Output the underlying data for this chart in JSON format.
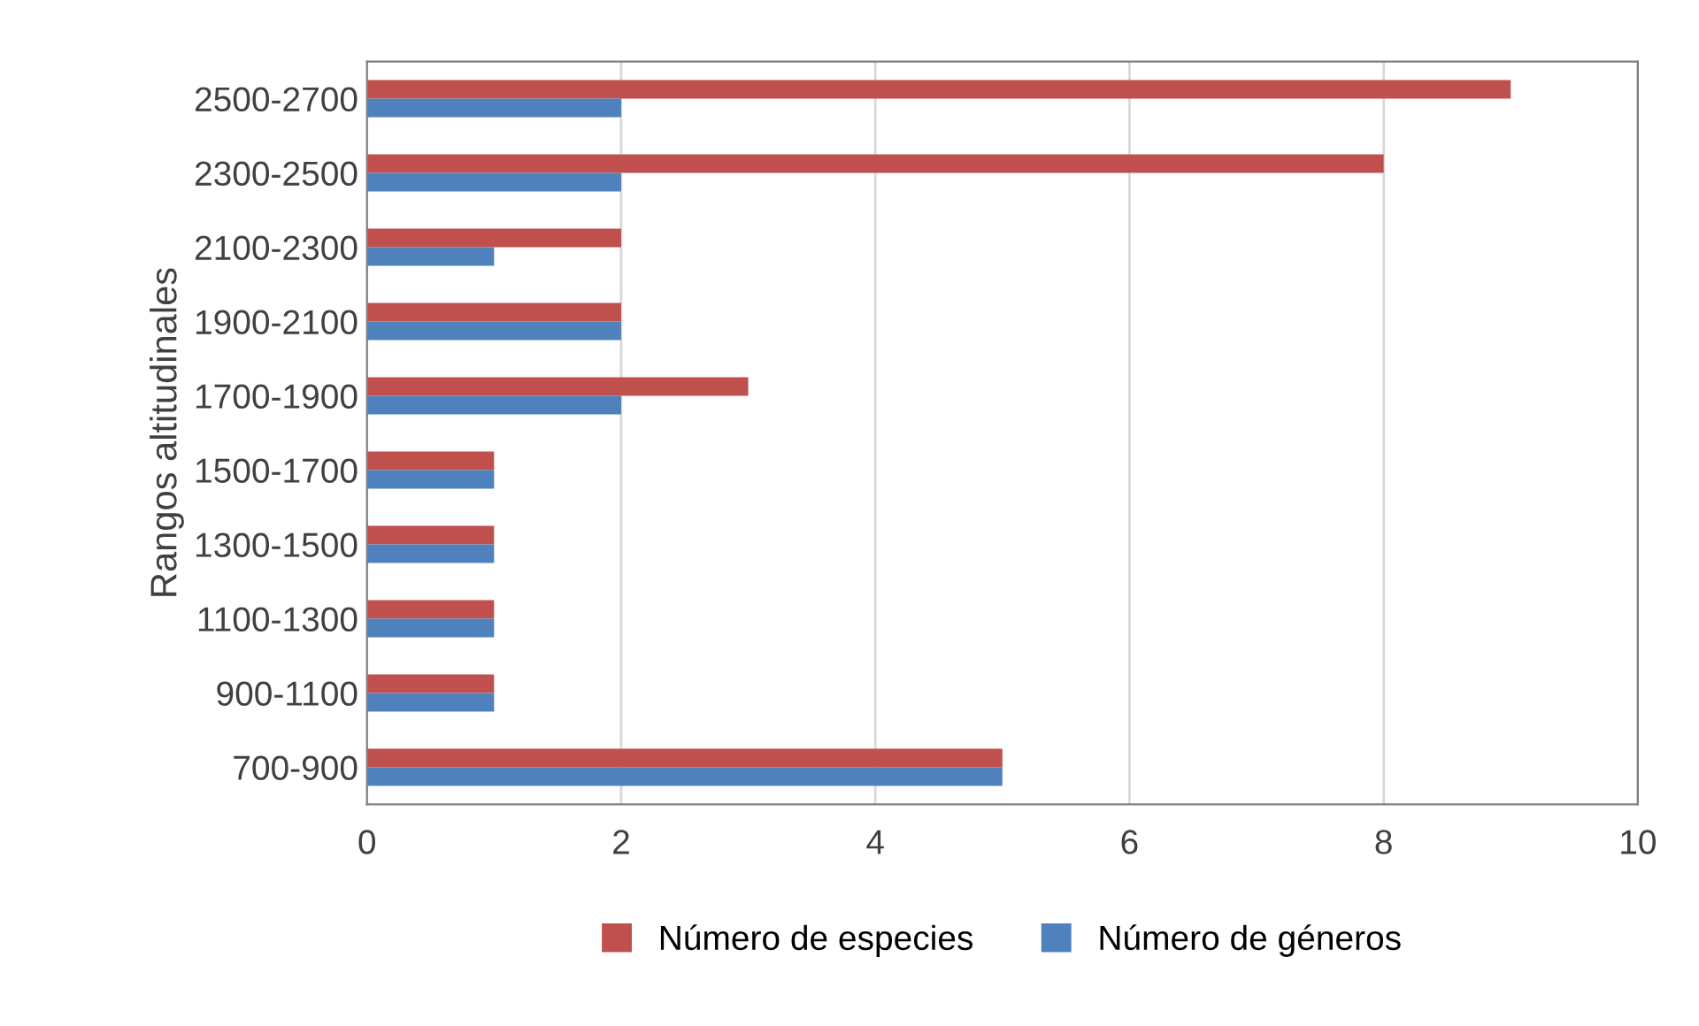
{
  "chart_data": {
    "type": "bar",
    "orientation": "horizontal",
    "ylabel": "Rangos altitudinales",
    "categories": [
      "2500-2700",
      "2300-2500",
      "2100-2300",
      "1900-2100",
      "1700-1900",
      "1500-1700",
      "1300-1500",
      "1100-1300",
      "900-1100",
      "700-900"
    ],
    "series": [
      {
        "name": "Número de especies",
        "color": "#c0504d",
        "values": [
          9,
          8,
          2,
          2,
          3,
          1,
          1,
          1,
          1,
          5
        ]
      },
      {
        "name": "Número de géneros",
        "color": "#4f81bd",
        "values": [
          2,
          2,
          1,
          2,
          2,
          1,
          1,
          1,
          1,
          5
        ]
      }
    ],
    "xlim": [
      0,
      10
    ],
    "xticks": [
      0,
      2,
      4,
      6,
      8,
      10
    ],
    "grid": "x",
    "legend": "bottom"
  }
}
